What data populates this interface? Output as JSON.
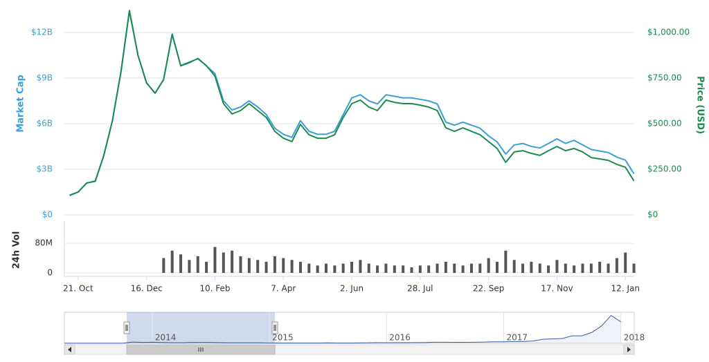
{
  "chart_data": [
    {
      "type": "line",
      "series": [
        {
          "name": "Market Cap",
          "color": "#3a9fd8",
          "values": [
            1300000000,
            1500000000,
            2100000000,
            2200000000,
            3900000000,
            6200000000,
            9400000000,
            13400000000,
            10500000000,
            8700000000,
            8000000000,
            8900000000,
            11900000000,
            9800000000,
            10000000000,
            10300000000,
            9800000000,
            9300000000,
            7500000000,
            6900000000,
            7100000000,
            7500000000,
            7100000000,
            6600000000,
            5700000000,
            5300000000,
            5100000000,
            6200000000,
            5500000000,
            5300000000,
            5300000000,
            5500000000,
            6600000000,
            7700000000,
            7900000000,
            7500000000,
            7300000000,
            7900000000,
            7800000000,
            7700000000,
            7700000000,
            7600000000,
            7500000000,
            7300000000,
            6100000000,
            5900000000,
            6100000000,
            5900000000,
            5700000000,
            5200000000,
            4800000000,
            4000000000,
            4600000000,
            4700000000,
            4500000000,
            4400000000,
            4700000000,
            5000000000,
            4700000000,
            4900000000,
            4600000000,
            4300000000,
            4200000000,
            4100000000,
            3800000000,
            3600000000,
            2700000000
          ]
        },
        {
          "name": "Price (USD)",
          "color": "#1a8a4d",
          "axis": "y2",
          "values": [
            106,
            125,
            174,
            186,
            326,
            515,
            780,
            1121,
            875,
            723,
            667,
            742,
            989,
            818,
            837,
            856,
            818,
            761,
            610,
            553,
            572,
            610,
            572,
            534,
            458,
            420,
            402,
            496,
            439,
            420,
            420,
            439,
            534,
            610,
            629,
            591,
            572,
            629,
            617,
            610,
            610,
            602,
            591,
            572,
            477,
            458,
            477,
            458,
            439,
            402,
            364,
            288,
            345,
            352,
            337,
            326,
            352,
            375,
            352,
            364,
            345,
            314,
            307,
            299,
            277,
            261,
            186
          ]
        }
      ],
      "ylim": [
        0,
        13500000000
      ],
      "yticks": [
        {
          "value": 0,
          "label": "$0"
        },
        {
          "value": 3000000000,
          "label": "$3B"
        },
        {
          "value": 6000000000,
          "label": "$6B"
        },
        {
          "value": 9000000000,
          "label": "$9B"
        },
        {
          "value": 12000000000,
          "label": "$12B"
        }
      ],
      "y2lim": [
        0,
        1125
      ],
      "y2ticks": [
        {
          "value": 0,
          "label": "$0"
        },
        {
          "value": 250,
          "label": "$250.00"
        },
        {
          "value": 500,
          "label": "$500.00"
        },
        {
          "value": 750,
          "label": "$750.00"
        },
        {
          "value": 1000,
          "label": "$1,000.00"
        }
      ],
      "grid": true
    },
    {
      "type": "bar",
      "ylabel": "24h Vol",
      "categories": [
        null,
        "21. Oct",
        null,
        null,
        null,
        null,
        null,
        null,
        null,
        "16. Dec",
        null,
        null,
        null,
        null,
        null,
        null,
        null,
        "10. Feb",
        null,
        null,
        null,
        null,
        null,
        null,
        null,
        "7. Apr",
        null,
        null,
        null,
        null,
        null,
        null,
        null,
        "2. Jun",
        null,
        null,
        null,
        null,
        null,
        null,
        null,
        "28. Jul",
        null,
        null,
        null,
        null,
        null,
        null,
        null,
        "22. Sep",
        null,
        null,
        null,
        null,
        null,
        null,
        null,
        "17. Nov",
        null,
        null,
        null,
        null,
        null,
        null,
        null,
        "12. Jan",
        null
      ],
      "values": [
        null,
        null,
        null,
        null,
        null,
        null,
        null,
        null,
        null,
        null,
        null,
        40000000,
        60000000,
        50000000,
        35000000,
        45000000,
        30000000,
        70000000,
        55000000,
        60000000,
        45000000,
        40000000,
        35000000,
        30000000,
        45000000,
        40000000,
        35000000,
        30000000,
        25000000,
        20000000,
        25000000,
        20000000,
        25000000,
        30000000,
        35000000,
        25000000,
        20000000,
        25000000,
        20000000,
        20000000,
        15000000,
        20000000,
        20000000,
        25000000,
        30000000,
        25000000,
        20000000,
        25000000,
        25000000,
        40000000,
        30000000,
        60000000,
        35000000,
        25000000,
        30000000,
        25000000,
        20000000,
        35000000,
        25000000,
        20000000,
        25000000,
        25000000,
        30000000,
        25000000,
        40000000,
        55000000,
        25000000
      ],
      "color": "#555555",
      "ylim": [
        0,
        140000000
      ],
      "yticks": [
        0,
        {
          "value": 80000000,
          "label": "80M"
        }
      ],
      "grid": true
    },
    {
      "type": "area",
      "categories": [
        null,
        null,
        null,
        null,
        null,
        null,
        null,
        null,
        null,
        "2014",
        null,
        null,
        null,
        null,
        null,
        null,
        null,
        null,
        null,
        null,
        null,
        "2015",
        null,
        null,
        null,
        null,
        null,
        null,
        null,
        null,
        null,
        null,
        null,
        "2016",
        null,
        null,
        null,
        null,
        null,
        null,
        null,
        null,
        null,
        null,
        null,
        "2017",
        null,
        null,
        null,
        null,
        null,
        null,
        null,
        null,
        null,
        null,
        null,
        "2018"
      ],
      "values": [
        1500000000,
        1300000000,
        1100000000,
        1000000000,
        1300000000,
        1500000000,
        2000000000,
        12000000000,
        9000000000,
        10000000000,
        7500000000,
        6000000000,
        6000000000,
        7500000000,
        7500000000,
        7500000000,
        6500000000,
        5000000000,
        4500000000,
        5000000000,
        4500000000,
        3000000000,
        3500000000,
        3500000000,
        3200000000,
        3300000000,
        3500000000,
        4200000000,
        3500000000,
        3400000000,
        4000000000,
        5000000000,
        6500000000,
        6000000000,
        6500000000,
        6500000000,
        7000000000,
        8000000000,
        10000000000,
        10500000000,
        9500000000,
        9700000000,
        10500000000,
        12000000000,
        15000000000,
        15000000000,
        17000000000,
        17000000000,
        22000000000,
        38000000000,
        42000000000,
        45000000000,
        70000000000,
        70000000000,
        100000000000,
        160000000000,
        260000000000,
        200000000000
      ],
      "color": "#335cad",
      "ylim": [
        0,
        270000000000
      ]
    }
  ]
}
